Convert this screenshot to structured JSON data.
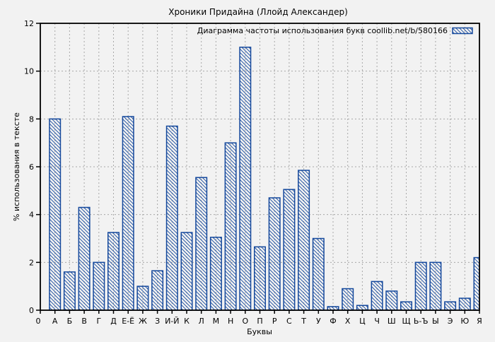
{
  "page": {
    "title": "Хроники Придайна (Ллойд Александер)"
  },
  "colors": {
    "background": "#f2f2f2",
    "bar": "#14489c",
    "grid": "#a8a8a8",
    "axis": "#000000",
    "text": "#000000"
  },
  "chart_data": {
    "type": "bar",
    "title": "Хроники Придайна (Ллойд Александер)",
    "legend": "Диаграмма частоты использования букв coollib.net/b/580166",
    "legend_position": "top-right",
    "xlabel": "Буквы",
    "ylabel": "% использования в тексте",
    "x_origin_label": "0",
    "categories": [
      "А",
      "Б",
      "В",
      "Г",
      "Д",
      "Е-Ё",
      "Ж",
      "З",
      "И-Й",
      "К",
      "Л",
      "М",
      "Н",
      "О",
      "П",
      "Р",
      "С",
      "Т",
      "У",
      "Ф",
      "Х",
      "Ц",
      "Ч",
      "Ш",
      "Щ",
      "Ь-Ъ",
      "Ы",
      "Э",
      "Ю",
      "Я"
    ],
    "values": [
      8.0,
      1.6,
      4.3,
      2.0,
      3.25,
      8.1,
      1.0,
      1.65,
      7.7,
      3.25,
      5.55,
      3.05,
      7.0,
      11.0,
      2.65,
      4.7,
      5.05,
      5.85,
      3.0,
      0.15,
      0.9,
      0.2,
      1.2,
      0.8,
      0.35,
      2.0,
      2.0,
      0.35,
      0.5,
      2.2
    ],
    "ylim": [
      0,
      12
    ],
    "yticks": [
      0,
      2,
      4,
      6,
      8,
      10,
      12
    ],
    "grid": true,
    "bar_style": "unfilled with blue diagonal hatch"
  }
}
